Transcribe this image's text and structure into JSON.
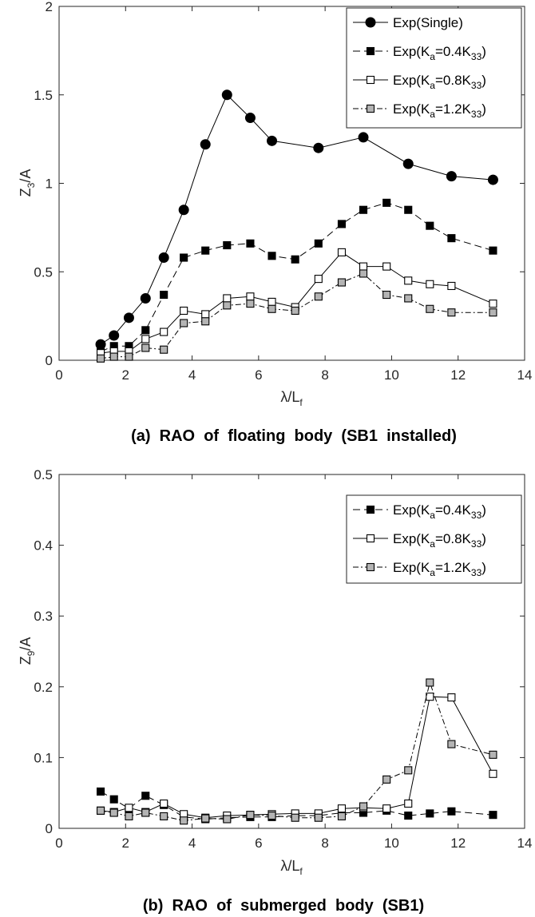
{
  "chart_data": [
    {
      "type": "line",
      "panel": "a",
      "caption": "(a)  RAO  of  floating  body  (SB1  installed)",
      "xlabel": "λ/L_f",
      "ylabel": "Z_3/A",
      "xlim": [
        0,
        14
      ],
      "ylim": [
        0,
        2
      ],
      "xticks": [
        "0",
        "2",
        "4",
        "6",
        "8",
        "10",
        "12",
        "14"
      ],
      "yticks": [
        "0",
        "0.5",
        "1",
        "1.5",
        "2"
      ],
      "legend_position": "top-right",
      "grid": false,
      "series": [
        {
          "name": "Exp(Single)",
          "legend": {
            "main": "Exp(Single)",
            "sub1": "",
            "mid": "",
            "sub2": "",
            "tail": ""
          },
          "x": [
            1.25,
            1.65,
            2.1,
            2.6,
            3.15,
            3.75,
            4.4,
            5.05,
            5.75,
            6.4,
            7.8,
            9.15,
            10.5,
            11.8,
            13.05
          ],
          "y": [
            0.09,
            0.14,
            0.24,
            0.35,
            0.58,
            0.85,
            1.22,
            1.5,
            1.37,
            1.24,
            1.2,
            1.26,
            1.11,
            1.04,
            1.02
          ],
          "marker": "circle",
          "fill": "#000000",
          "dash": ""
        },
        {
          "name": "Exp(Ka=0.4K33)",
          "legend": {
            "main": "Exp(K",
            "sub1": "a",
            "mid": "=0.4K",
            "sub2": "33",
            "tail": ")"
          },
          "x": [
            1.25,
            1.65,
            2.1,
            2.6,
            3.15,
            3.75,
            4.4,
            5.05,
            5.75,
            6.4,
            7.1,
            7.8,
            8.5,
            9.15,
            9.85,
            10.5,
            11.15,
            11.8,
            13.05
          ],
          "y": [
            0.05,
            0.08,
            0.08,
            0.17,
            0.37,
            0.58,
            0.62,
            0.65,
            0.66,
            0.59,
            0.57,
            0.66,
            0.77,
            0.85,
            0.89,
            0.85,
            0.76,
            0.69,
            0.62
          ],
          "marker": "square",
          "fill": "#000000",
          "dash": "9,5"
        },
        {
          "name": "Exp(Ka=0.8K33)",
          "legend": {
            "main": "Exp(K",
            "sub1": "a",
            "mid": "=0.8K",
            "sub2": "33",
            "tail": ")"
          },
          "x": [
            1.25,
            1.65,
            2.1,
            2.6,
            3.15,
            3.75,
            4.4,
            5.05,
            5.75,
            6.4,
            7.1,
            7.8,
            8.5,
            9.15,
            9.85,
            10.5,
            11.15,
            11.8,
            13.05
          ],
          "y": [
            0.04,
            0.05,
            0.05,
            0.12,
            0.16,
            0.28,
            0.26,
            0.35,
            0.36,
            0.33,
            0.3,
            0.46,
            0.61,
            0.53,
            0.53,
            0.45,
            0.43,
            0.42,
            0.32
          ],
          "marker": "square",
          "fill": "#ffffff",
          "dash": ""
        },
        {
          "name": "Exp(Ka=1.2K33)",
          "legend": {
            "main": "Exp(K",
            "sub1": "a",
            "mid": "=1.2K",
            "sub2": "33",
            "tail": ")"
          },
          "x": [
            1.25,
            1.65,
            2.1,
            2.6,
            3.15,
            3.75,
            4.4,
            5.05,
            5.75,
            6.4,
            7.1,
            7.8,
            8.5,
            9.15,
            9.85,
            10.5,
            11.15,
            11.8,
            13.05
          ],
          "y": [
            0.01,
            0.02,
            0.02,
            0.07,
            0.06,
            0.21,
            0.22,
            0.31,
            0.32,
            0.29,
            0.28,
            0.36,
            0.44,
            0.49,
            0.37,
            0.35,
            0.29,
            0.27,
            0.27
          ],
          "marker": "square",
          "fill": "#b4b4b4",
          "dash": "7,3,2,3"
        }
      ]
    },
    {
      "type": "line",
      "panel": "b",
      "caption": "(b)  RAO  of  submerged  body  (SB1)",
      "xlabel": "λ/L_f",
      "ylabel": "Z_9/A",
      "xlim": [
        0,
        14
      ],
      "ylim": [
        0,
        0.5
      ],
      "xticks": [
        "0",
        "2",
        "4",
        "6",
        "8",
        "10",
        "12",
        "14"
      ],
      "yticks": [
        "0",
        "0.1",
        "0.2",
        "0.3",
        "0.4",
        "0.5"
      ],
      "legend_position": "top-right",
      "grid": false,
      "series": [
        {
          "name": "Exp(Ka=0.4K33)",
          "legend": {
            "main": "Exp(K",
            "sub1": "a",
            "mid": "=0.4K",
            "sub2": "33",
            "tail": ")"
          },
          "x": [
            1.25,
            1.65,
            2.1,
            2.6,
            3.15,
            3.75,
            4.4,
            5.05,
            5.75,
            6.4,
            7.1,
            7.8,
            8.5,
            9.15,
            9.85,
            10.5,
            11.15,
            11.8,
            13.05
          ],
          "y": [
            0.052,
            0.041,
            0.028,
            0.046,
            0.033,
            0.016,
            0.013,
            0.015,
            0.016,
            0.016,
            0.018,
            0.018,
            0.022,
            0.022,
            0.025,
            0.018,
            0.021,
            0.024,
            0.019
          ],
          "marker": "square",
          "fill": "#000000",
          "dash": "9,5"
        },
        {
          "name": "Exp(Ka=0.8K33)",
          "legend": {
            "main": "Exp(K",
            "sub1": "a",
            "mid": "=0.8K",
            "sub2": "33",
            "tail": ")"
          },
          "x": [
            1.25,
            1.65,
            2.1,
            2.6,
            3.15,
            3.75,
            4.4,
            5.05,
            5.75,
            6.4,
            7.1,
            7.8,
            8.5,
            9.15,
            9.85,
            10.5,
            11.15,
            11.8,
            13.05
          ],
          "y": [
            0.025,
            0.023,
            0.029,
            0.023,
            0.035,
            0.02,
            0.015,
            0.018,
            0.019,
            0.02,
            0.021,
            0.021,
            0.028,
            0.029,
            0.028,
            0.035,
            0.186,
            0.185,
            0.077
          ],
          "marker": "square",
          "fill": "#ffffff",
          "dash": ""
        },
        {
          "name": "Exp(Ka=1.2K33)",
          "legend": {
            "main": "Exp(K",
            "sub1": "a",
            "mid": "=1.2K",
            "sub2": "33",
            "tail": ")"
          },
          "x": [
            1.25,
            1.65,
            2.1,
            2.6,
            3.15,
            3.75,
            4.4,
            5.05,
            5.75,
            6.4,
            7.1,
            7.8,
            8.5,
            9.15,
            9.85,
            10.5,
            11.15,
            11.8,
            13.05
          ],
          "y": [
            0.025,
            0.022,
            0.017,
            0.022,
            0.017,
            0.011,
            0.014,
            0.013,
            0.019,
            0.018,
            0.015,
            0.015,
            0.017,
            0.031,
            0.069,
            0.082,
            0.206,
            0.119,
            0.104
          ],
          "marker": "square",
          "fill": "#b4b4b4",
          "dash": "7,3,2,3"
        }
      ]
    }
  ],
  "labels": {
    "a": {
      "x_main": "λ/L",
      "x_sub": "f",
      "y_main": "Z",
      "y_sub": "3",
      "y_tail": "/A"
    },
    "b": {
      "x_main": "λ/L",
      "x_sub": "f",
      "y_main": "Z",
      "y_sub": "9",
      "y_tail": "/A"
    }
  }
}
